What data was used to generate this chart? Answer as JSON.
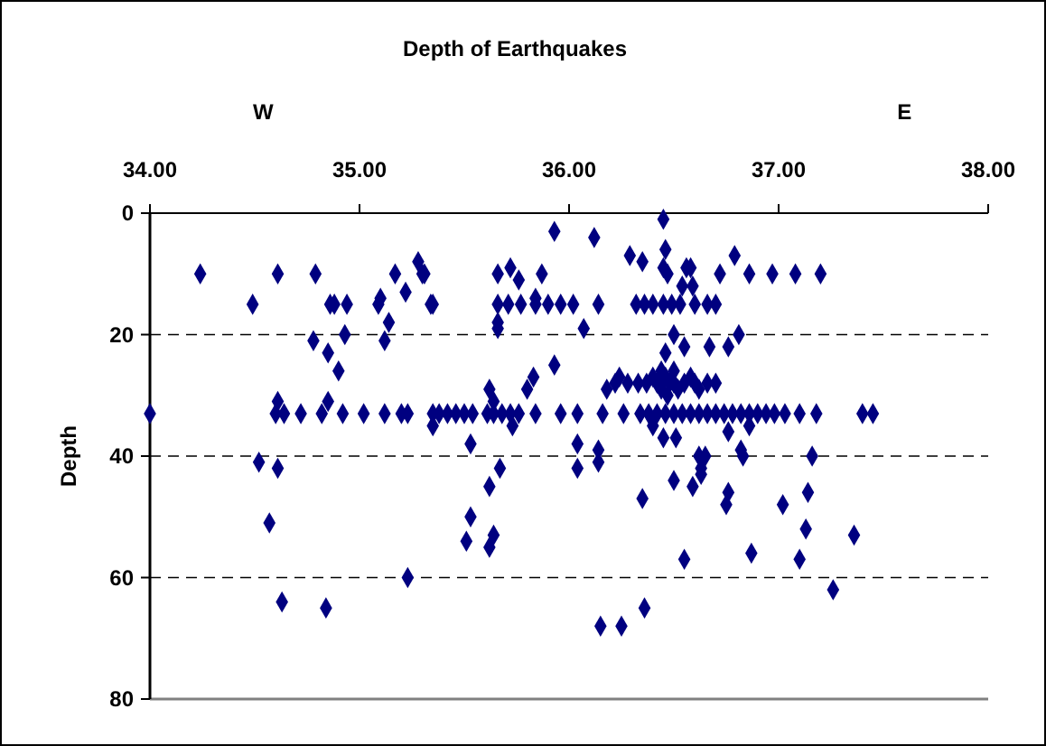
{
  "chart_data": {
    "type": "scatter",
    "title": "Depth of Earthquakes",
    "ylabel": "Depth",
    "annotations": [
      "W",
      "E"
    ],
    "xlim": [
      34,
      38
    ],
    "xticks": [
      {
        "value": 34,
        "label": "34.00"
      },
      {
        "value": 35,
        "label": "35.00"
      },
      {
        "value": 36,
        "label": "36.00"
      },
      {
        "value": 37,
        "label": "37.00"
      },
      {
        "value": 38,
        "label": "38.00"
      }
    ],
    "ylim": [
      80,
      0
    ],
    "yticks": [
      0,
      20,
      40,
      60,
      80
    ],
    "grid": "y",
    "marker": "diamond",
    "series": [
      {
        "color": "#000080",
        "x": [
          34.24,
          34.61,
          34.79,
          35.17,
          35.28,
          35.3,
          34.49,
          34.86,
          34.88,
          34.94,
          35.09,
          35.1,
          35.22,
          35.34,
          35.14,
          34.78,
          35.12,
          34.93,
          34.85,
          34.9,
          34.0,
          34.6,
          34.64,
          34.72,
          34.82,
          34.92,
          35.02,
          35.12,
          35.2,
          35.23,
          34.61,
          34.85,
          35.35,
          34.52,
          34.61,
          34.57,
          34.63,
          34.84,
          35.23,
          35.53,
          35.51,
          35.62,
          35.64,
          35.62,
          36.15,
          36.25,
          36.36,
          36.35,
          36.55,
          36.59,
          36.75,
          36.76,
          36.87,
          37.02,
          37.1,
          37.13,
          37.14,
          37.26,
          37.36,
          35.93,
          36.12,
          36.45,
          36.46,
          36.29,
          36.35,
          35.31,
          35.66,
          35.72,
          35.76,
          35.87,
          36.45,
          36.47,
          36.56,
          36.54,
          36.59,
          35.35,
          35.66,
          35.71,
          35.77,
          35.84,
          35.9,
          35.96,
          36.02,
          36.14,
          36.32,
          36.36,
          36.4,
          36.45,
          36.49,
          36.53,
          36.6,
          35.84,
          35.66,
          35.66,
          36.07,
          36.5,
          36.55,
          36.46,
          35.93,
          35.83,
          35.8,
          35.62,
          35.64,
          36.18,
          36.22,
          36.24,
          36.28,
          36.33,
          36.37,
          36.4,
          36.42,
          36.44,
          36.46,
          36.48,
          36.5,
          36.5,
          36.52,
          36.55,
          36.58,
          36.6,
          36.62,
          36.66,
          36.7,
          36.44,
          36.47,
          35.35,
          35.38,
          35.42,
          35.46,
          35.5,
          35.54,
          35.61,
          35.64,
          35.68,
          35.72,
          35.76,
          35.84,
          35.96,
          36.04,
          36.16,
          36.26,
          36.34,
          36.38,
          36.42,
          36.46,
          36.5,
          36.54,
          36.58,
          36.62,
          36.66,
          36.7,
          36.74,
          36.78,
          36.82,
          36.86,
          36.9,
          36.94,
          36.98,
          37.03,
          37.1,
          37.18,
          37.4,
          37.45,
          35.73,
          35.53,
          36.04,
          36.14,
          36.14,
          36.04,
          35.67,
          36.4,
          36.45,
          36.51,
          36.5,
          36.62,
          36.76,
          36.86,
          36.65,
          36.82,
          36.83,
          37.16,
          36.63,
          36.63,
          36.79,
          36.58,
          36.72,
          36.86,
          36.97,
          37.08,
          37.2,
          36.66,
          36.7,
          36.81,
          36.67,
          36.76
        ],
        "values": [
          10,
          10,
          10,
          10,
          8,
          10,
          15,
          15,
          15,
          15,
          15,
          14,
          13,
          15,
          18,
          21,
          21,
          20,
          23,
          26,
          33,
          33,
          33,
          33,
          33,
          33,
          33,
          33,
          33,
          33,
          31,
          31,
          35,
          41,
          42,
          51,
          64,
          65,
          60,
          50,
          54,
          55,
          53,
          45,
          68,
          68,
          65,
          47,
          57,
          45,
          48,
          46,
          56,
          48,
          57,
          52,
          46,
          62,
          53,
          3,
          4,
          1,
          6,
          7,
          8,
          10,
          10,
          9,
          11,
          10,
          9,
          10,
          9,
          12,
          12,
          15,
          15,
          15,
          15,
          15,
          15,
          15,
          15,
          15,
          15,
          15,
          15,
          15,
          15,
          15,
          15,
          14,
          18,
          19,
          19,
          20,
          22,
          23,
          25,
          27,
          29,
          29,
          31,
          29,
          28,
          27,
          28,
          28,
          28,
          27,
          28,
          29,
          27,
          28,
          26,
          28,
          29,
          28,
          27,
          28,
          29,
          28,
          28,
          26,
          30,
          33,
          33,
          33,
          33,
          33,
          33,
          33,
          33,
          33,
          33,
          33,
          33,
          33,
          33,
          33,
          33,
          33,
          33,
          33,
          33,
          33,
          33,
          33,
          33,
          33,
          33,
          33,
          33,
          33,
          33,
          33,
          33,
          33,
          33,
          33,
          33,
          33,
          33,
          35,
          38,
          38,
          39,
          41,
          42,
          42,
          35,
          37,
          37,
          44,
          40,
          36,
          35,
          40,
          39,
          40,
          40,
          42,
          43,
          7,
          9,
          10,
          10,
          10,
          10,
          10,
          15,
          15,
          20,
          22,
          22
        ]
      }
    ]
  }
}
